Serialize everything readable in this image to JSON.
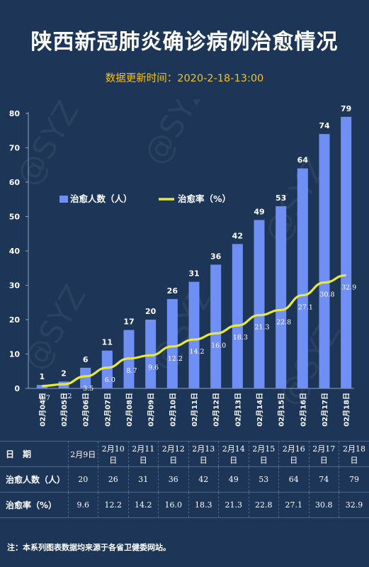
{
  "title": "陕西新冠肺炎确诊病例治愈情况",
  "subtitle": "数据更新时间：2020-2-18-13:00",
  "watermark": "@SYZ",
  "colors": {
    "background": "#1d3657",
    "bar": "#6f8ff5",
    "line": "#e8e83a",
    "subtitle": "#f3c21b"
  },
  "chart_data": {
    "type": "bar",
    "categories": [
      "02月04日",
      "02月05日",
      "02月06日",
      "02月07日",
      "02月08日",
      "02月09日",
      "02月10日",
      "02月11日",
      "02月12日",
      "02月13日",
      "02月14日",
      "02月15日",
      "02月16日",
      "02月17日",
      "02月18日"
    ],
    "series": [
      {
        "name": "治愈人数（人）",
        "type": "bar",
        "values": [
          1,
          2,
          6,
          11,
          17,
          20,
          26,
          31,
          36,
          42,
          49,
          53,
          64,
          74,
          79
        ]
      },
      {
        "name": "治愈率（%）",
        "type": "line",
        "values": [
          0.7,
          1.2,
          3.5,
          6.0,
          8.7,
          9.6,
          12.2,
          14.2,
          16.0,
          18.3,
          21.3,
          22.8,
          27.1,
          30.8,
          32.9
        ]
      }
    ],
    "ylim": [
      0,
      80
    ],
    "yticks": [
      0,
      10,
      20,
      30,
      40,
      50,
      60,
      70,
      80
    ],
    "legend_placement": "left-middle",
    "grid": false
  },
  "table": {
    "headers": [
      "日　期",
      "治愈人数（人）",
      "治愈率（%）"
    ],
    "dates": [
      "2月9日",
      "2月10日",
      "2月11日",
      "2月12日",
      "2月13日",
      "2月14日",
      "2月15日",
      "2月16日",
      "2月17日",
      "2月18日"
    ],
    "cured": [
      "20",
      "26",
      "31",
      "36",
      "42",
      "49",
      "53",
      "64",
      "74",
      "79"
    ],
    "rates": [
      "9.6",
      "12.2",
      "14.2",
      "16.0",
      "18.3",
      "21.3",
      "22.8",
      "27.1",
      "30.8",
      "32.9"
    ]
  },
  "note": "注：本系列图表数据均来源于各省卫健委网站。"
}
